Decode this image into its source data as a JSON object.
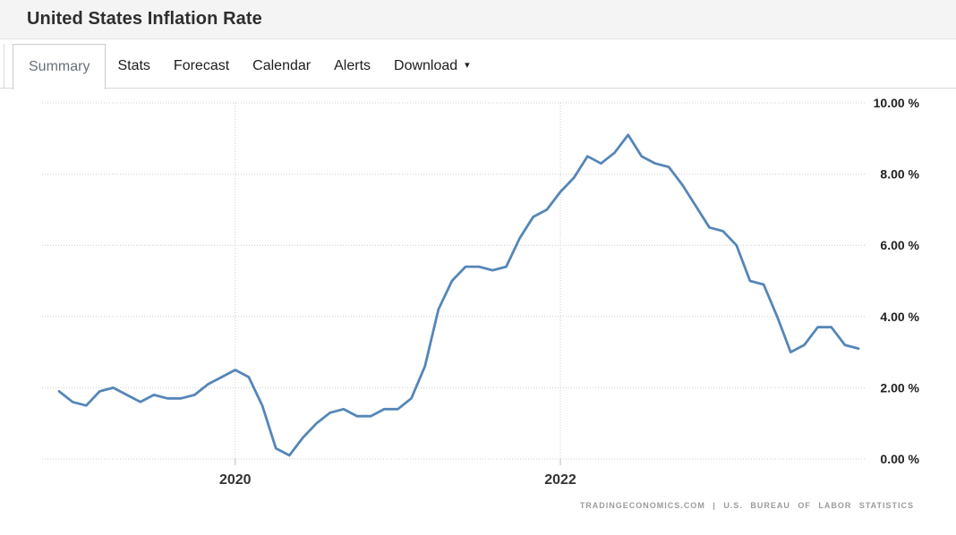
{
  "header": {
    "title": "United States Inflation Rate"
  },
  "tabs": {
    "dropdown_caret": "▾",
    "items": [
      {
        "label": "Summary",
        "active": true
      },
      {
        "label": "Stats",
        "active": false
      },
      {
        "label": "Forecast",
        "active": false
      },
      {
        "label": "Calendar",
        "active": false
      },
      {
        "label": "Alerts",
        "active": false
      },
      {
        "label": "Download",
        "active": false,
        "has_dropdown": true
      }
    ]
  },
  "chart_data": {
    "type": "line",
    "title": "United States Inflation Rate",
    "unit": "%",
    "line_color": "#5586b8",
    "grid_color": "#cccccc",
    "grid_style": "dotted",
    "ylim": [
      0,
      10
    ],
    "yticks": [
      0,
      2,
      4,
      6,
      8,
      10
    ],
    "ytick_labels": [
      "0.00 %",
      "2.00 %",
      "4.00 %",
      "6.00 %",
      "8.00 %",
      "10.00 %"
    ],
    "xticks": [
      {
        "label": "2020",
        "index": 13
      },
      {
        "label": "2022",
        "index": 37
      }
    ],
    "x": [
      "2018-12",
      "2019-01",
      "2019-02",
      "2019-03",
      "2019-04",
      "2019-05",
      "2019-06",
      "2019-07",
      "2019-08",
      "2019-09",
      "2019-10",
      "2019-11",
      "2019-12",
      "2020-01",
      "2020-02",
      "2020-03",
      "2020-04",
      "2020-05",
      "2020-06",
      "2020-07",
      "2020-08",
      "2020-09",
      "2020-10",
      "2020-11",
      "2020-12",
      "2021-01",
      "2021-02",
      "2021-03",
      "2021-04",
      "2021-05",
      "2021-06",
      "2021-07",
      "2021-08",
      "2021-09",
      "2021-10",
      "2021-11",
      "2021-12",
      "2022-01",
      "2022-02",
      "2022-03",
      "2022-04",
      "2022-05",
      "2022-06",
      "2022-07",
      "2022-08",
      "2022-09",
      "2022-10",
      "2022-11",
      "2022-12",
      "2023-01",
      "2023-02",
      "2023-03",
      "2023-04",
      "2023-05",
      "2023-06",
      "2023-07",
      "2023-08",
      "2023-09",
      "2023-10",
      "2023-11"
    ],
    "values": [
      1.9,
      1.6,
      1.5,
      1.9,
      2.0,
      1.8,
      1.6,
      1.8,
      1.7,
      1.7,
      1.8,
      2.1,
      2.3,
      2.5,
      2.3,
      1.5,
      0.3,
      0.1,
      0.6,
      1.0,
      1.3,
      1.4,
      1.2,
      1.2,
      1.4,
      1.4,
      1.7,
      2.6,
      4.2,
      5.0,
      5.4,
      5.4,
      5.3,
      5.4,
      6.2,
      6.8,
      7.0,
      7.5,
      7.9,
      8.5,
      8.3,
      8.6,
      9.1,
      8.5,
      8.3,
      8.2,
      7.7,
      7.1,
      6.5,
      6.4,
      6.0,
      5.0,
      4.9,
      4.0,
      3.0,
      3.2,
      3.7,
      3.7,
      3.2,
      3.1
    ],
    "attribution": "TRADINGECONOMICS.COM | U.S. BUREAU OF LABOR STATISTICS"
  }
}
